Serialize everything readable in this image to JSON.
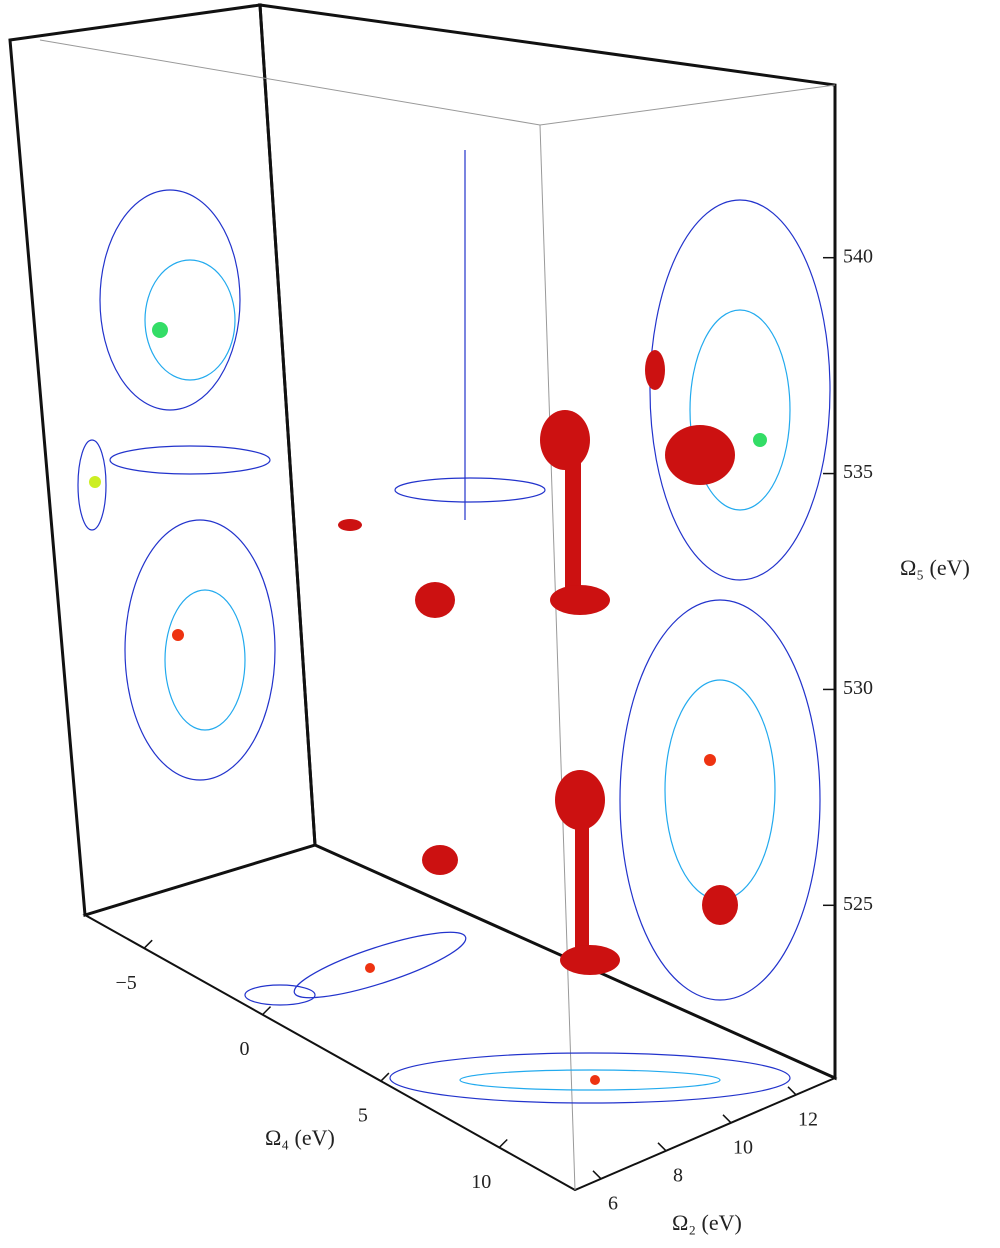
{
  "chart_data": {
    "type": "3d-contour",
    "zlabel": "Ω₅ (eV)",
    "xlabel": "Ω₄ (eV)",
    "ylabel": "Ω₂ (eV)",
    "zlim": [
      521,
      544
    ],
    "zticks": [
      525,
      530,
      535,
      540
    ],
    "xlim": [
      -7.5,
      13.2
    ],
    "xticks": [
      {
        "value": -5,
        "label": "−5"
      },
      0,
      5,
      10
    ],
    "ylim": [
      5.2,
      13.2
    ],
    "yticks": [
      6,
      8,
      10,
      12
    ]
  }
}
